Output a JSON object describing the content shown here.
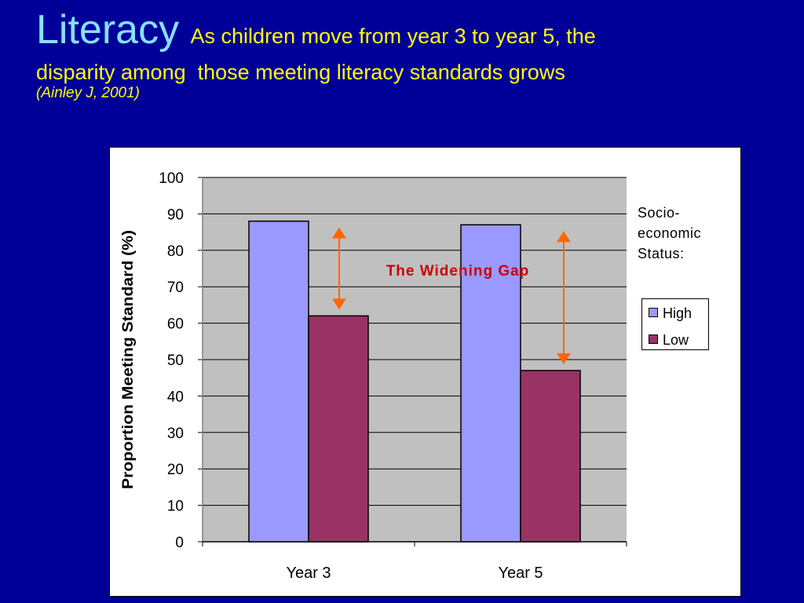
{
  "slide": {
    "title": "Literacy",
    "subtitle_line1": "As children move from year 3 to year 5, the",
    "subtitle_line2": "disparity among  those meeting literacy standards grows",
    "citation": "(Ainley J, 2001)"
  },
  "colors": {
    "background": "#000099",
    "title": "#88e0ff",
    "subtitle": "#ffff00",
    "plot_bg": "#c0c0c0",
    "high": "#9999ff",
    "low": "#993366",
    "arrow": "#ff6600",
    "annotation": "#cc0000"
  },
  "chart_data": {
    "type": "bar",
    "categories": [
      "Year 3",
      "Year 5"
    ],
    "series": [
      {
        "name": "High",
        "values": [
          88,
          87
        ]
      },
      {
        "name": "Low",
        "values": [
          62,
          47
        ]
      }
    ],
    "ylabel": "Proportion Meeting Standard (%)",
    "xlabel": "",
    "ylim": [
      0,
      100
    ],
    "yticks": [
      0,
      10,
      20,
      30,
      40,
      50,
      60,
      70,
      80,
      90,
      100
    ],
    "grid": true,
    "legend": {
      "title_lines": [
        "Socio-",
        "economic",
        "Status:"
      ],
      "position": "right"
    },
    "annotation": "The Widening Gap"
  }
}
